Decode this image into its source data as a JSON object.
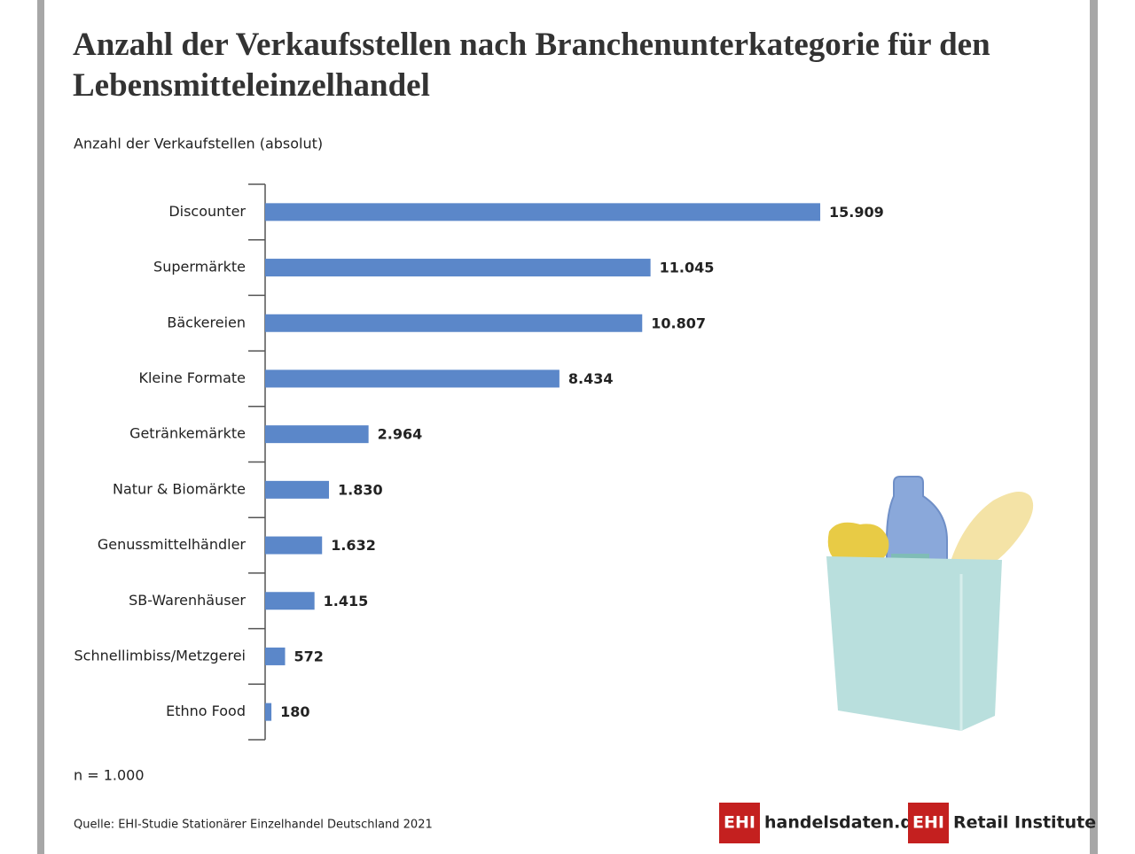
{
  "chart_data": {
    "type": "hbar",
    "title": "Anzahl der Verkaufsstellen nach Branchenunterkategorie für den Lebensmitteleinzelhandel",
    "subtitle": "Anzahl der Verkaufstellen (absolut)",
    "categories": [
      "Discounter",
      "Supermärkte",
      "Bäckereien",
      "Kleine Formate",
      "Getränkemärkte",
      "Natur & Biomärkte",
      "Genussmittelhändler",
      "SB-Warenhäuser",
      "Schnellimbiss/Metzgerei",
      "Ethno Food"
    ],
    "values": [
      15909,
      11045,
      10807,
      8434,
      2964,
      1830,
      1632,
      1415,
      572,
      180
    ],
    "value_labels": [
      "15.909",
      "11.045",
      "10.807",
      "8.434",
      "2.964",
      "1.830",
      "1.632",
      "1.415",
      "572",
      "180"
    ],
    "color": "#5b87c9",
    "xlim": [
      0,
      20000
    ],
    "note": "n = 1.000",
    "source": "Quelle: EHI-Studie Stationärer Einzelhandel Deutschland 2021",
    "logos": [
      "EHI",
      "handelsdaten.de",
      "EHI",
      "Retail Institute"
    ]
  }
}
